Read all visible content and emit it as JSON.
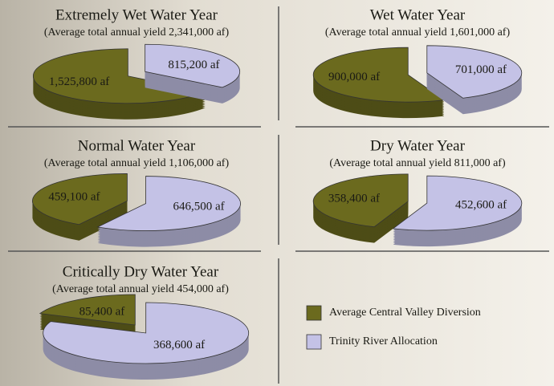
{
  "legend": [
    {
      "name": "Average Central Valley Diversion",
      "color": "#6b6a1e"
    },
    {
      "name": "Trinity River Allocation",
      "color": "#c4c2e6"
    }
  ],
  "chart_data": [
    {
      "type": "pie",
      "title": "Extremely Wet Water Year",
      "subtitle": "(Average total annual yield 2,341,000 af)",
      "values": [
        1525800,
        815200
      ],
      "value_labels": [
        "1,525,800 af",
        "815,200 af"
      ]
    },
    {
      "type": "pie",
      "title": "Wet Water Year",
      "subtitle": "(Average total annual yield 1,601,000 af)",
      "values": [
        900000,
        701000
      ],
      "value_labels": [
        "900,000 af",
        "701,000 af"
      ]
    },
    {
      "type": "pie",
      "title": "Normal Water Year",
      "subtitle": "(Average total annual yield 1,106,000 af)",
      "values": [
        459100,
        646500
      ],
      "value_labels": [
        "459,100 af",
        "646,500 af"
      ]
    },
    {
      "type": "pie",
      "title": "Dry Water Year",
      "subtitle": "(Average total annual yield 811,000 af)",
      "values": [
        358400,
        452600
      ],
      "value_labels": [
        "358,400 af",
        "452,600 af"
      ]
    },
    {
      "type": "pie",
      "title": "Critically Dry Water Year",
      "subtitle": "(Average total annual yield 454,000 af)",
      "values": [
        85400,
        368600
      ],
      "value_labels": [
        "85,400 af",
        "368,600 af"
      ]
    }
  ]
}
